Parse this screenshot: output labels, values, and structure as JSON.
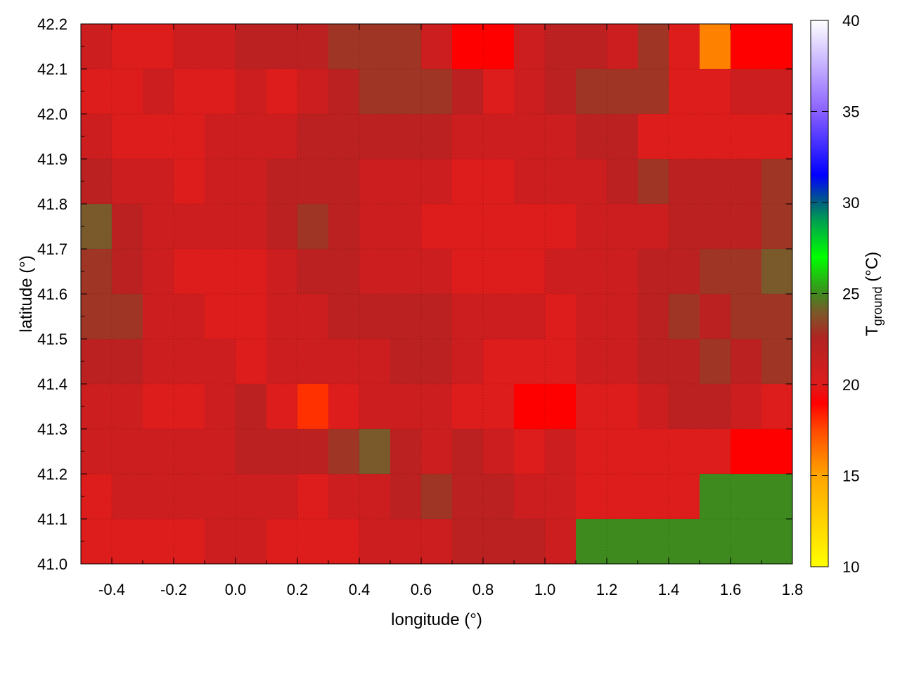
{
  "chart_data": {
    "type": "heatmap",
    "title": "",
    "xlabel": "longitude (°)",
    "ylabel": "latitude (°)",
    "colorbar_label": {
      "main": "T",
      "subscript": "ground",
      "unit": " (°C)"
    },
    "xlim": [
      -0.5,
      1.8
    ],
    "ylim": [
      41.0,
      42.2
    ],
    "clim": [
      10,
      40
    ],
    "x_ticks": [
      "-0.4",
      "-0.2",
      "0.0",
      "0.2",
      "0.4",
      "0.6",
      "0.8",
      "1.0",
      "1.2",
      "1.4",
      "1.6",
      "1.8"
    ],
    "y_ticks": [
      "41.0",
      "41.1",
      "41.2",
      "41.3",
      "41.4",
      "41.5",
      "41.6",
      "41.7",
      "41.8",
      "41.9",
      "42.0",
      "42.1",
      "42.2"
    ],
    "colorbar_ticks": [
      "10",
      "15",
      "20",
      "25",
      "30",
      "35",
      "40"
    ],
    "grid": true,
    "contours": true,
    "colormap": [
      {
        "v": 10,
        "c": "#ffff00"
      },
      {
        "v": 15,
        "c": "#ffa500"
      },
      {
        "v": 17.5,
        "c": "#ff4a00"
      },
      {
        "v": 19,
        "c": "#ff0000"
      },
      {
        "v": 20,
        "c": "#dd1c1c"
      },
      {
        "v": 22.5,
        "c": "#b22222"
      },
      {
        "v": 24,
        "c": "#7a5a2a"
      },
      {
        "v": 25,
        "c": "#3e8a1e"
      },
      {
        "v": 27,
        "c": "#00ff00"
      },
      {
        "v": 29,
        "c": "#00a050"
      },
      {
        "v": 30,
        "c": "#006080"
      },
      {
        "v": 31.5,
        "c": "#0000ff"
      },
      {
        "v": 35,
        "c": "#8a60ff"
      },
      {
        "v": 40,
        "c": "#ffffff"
      }
    ],
    "grid_lon_start": -0.5,
    "grid_lat_start": 42.2,
    "grid_step": 0.1,
    "values": [
      [
        21,
        20,
        20,
        21,
        21,
        22,
        22,
        22,
        23,
        23,
        23,
        21,
        19,
        19,
        21,
        22,
        22,
        21,
        23,
        20,
        16,
        19,
        19
      ],
      [
        20,
        20,
        21,
        20,
        20,
        21,
        20,
        21,
        22,
        23,
        23,
        23,
        22,
        20,
        21,
        22,
        23,
        23,
        23,
        20,
        20,
        21,
        21
      ],
      [
        21,
        20,
        20,
        20,
        21,
        21,
        21,
        22,
        22,
        22,
        22,
        22,
        21,
        21,
        21,
        21,
        22,
        22,
        20,
        20,
        20,
        20,
        20
      ],
      [
        22,
        21,
        21,
        20,
        21,
        21,
        22,
        22,
        22,
        21,
        21,
        21,
        20,
        20,
        21,
        21,
        21,
        22,
        23,
        22,
        22,
        22,
        23
      ],
      [
        24,
        22,
        21,
        21,
        21,
        21,
        22,
        23,
        22,
        21,
        21,
        20,
        20,
        20,
        20,
        20,
        21,
        21,
        21,
        22,
        22,
        22,
        23
      ],
      [
        23,
        22,
        21,
        20,
        20,
        20,
        21,
        22,
        22,
        21,
        21,
        21,
        20,
        20,
        20,
        21,
        21,
        21,
        22,
        22,
        23,
        23,
        24
      ],
      [
        23,
        23,
        21,
        21,
        20,
        20,
        21,
        21,
        22,
        22,
        22,
        22,
        21,
        21,
        21,
        20,
        21,
        21,
        22,
        23,
        22,
        23,
        23
      ],
      [
        22,
        22,
        21,
        21,
        21,
        20,
        21,
        21,
        21,
        21,
        22,
        22,
        21,
        20,
        20,
        20,
        21,
        21,
        22,
        22,
        23,
        22,
        23
      ],
      [
        21,
        21,
        20,
        20,
        21,
        22,
        20,
        18,
        20,
        21,
        21,
        21,
        20,
        20,
        19,
        19,
        20,
        20,
        21,
        22,
        22,
        21,
        20
      ],
      [
        21,
        21,
        21,
        21,
        21,
        22,
        22,
        22,
        23,
        24,
        22,
        21,
        22,
        21,
        20,
        21,
        20,
        20,
        20,
        20,
        20,
        19,
        19
      ],
      [
        20,
        21,
        21,
        21,
        21,
        21,
        21,
        20,
        21,
        21,
        22,
        23,
        22,
        22,
        21,
        21,
        20,
        20,
        20,
        20,
        25,
        25,
        25
      ],
      [
        20,
        20,
        20,
        20,
        21,
        21,
        20,
        20,
        20,
        21,
        21,
        21,
        22,
        22,
        22,
        21,
        25,
        25,
        25,
        25,
        25,
        25,
        25
      ]
    ]
  }
}
